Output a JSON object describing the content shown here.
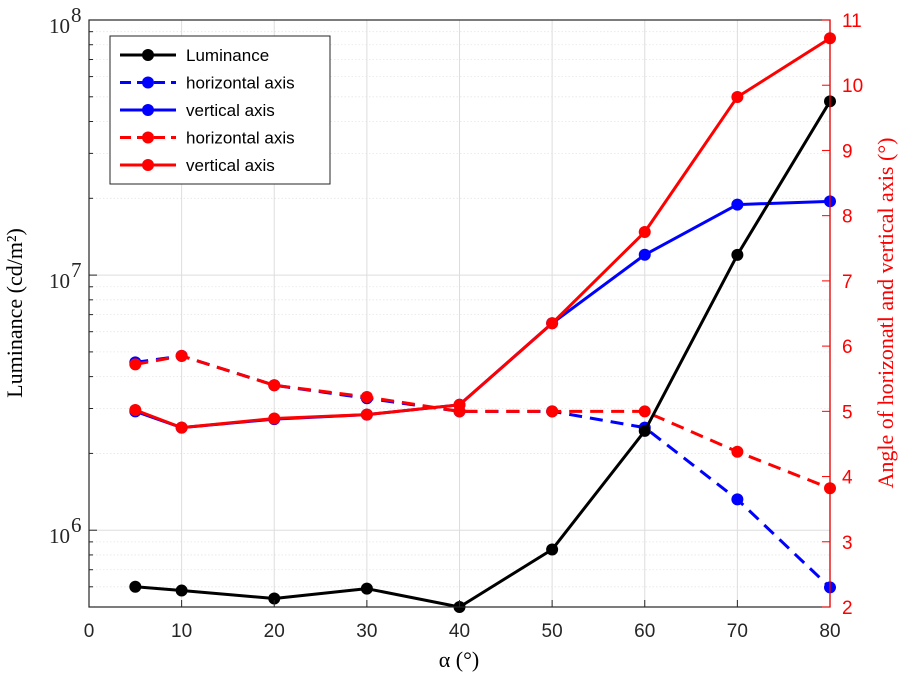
{
  "chart_data": {
    "type": "line",
    "x": [
      5,
      10,
      20,
      30,
      40,
      50,
      60,
      70,
      80
    ],
    "xlabel": "α (°)",
    "xlim": [
      0,
      80
    ],
    "xticks": [
      "0",
      "10",
      "20",
      "30",
      "40",
      "50",
      "60",
      "70",
      "80"
    ],
    "y_left": {
      "label": "Luminance (cd/m²)",
      "scale": "log",
      "lim": [
        500000,
        100000000
      ],
      "ticks": [
        {
          "value": 1000000,
          "base": "10",
          "exp": "6"
        },
        {
          "value": 10000000,
          "base": "10",
          "exp": "7"
        },
        {
          "value": 100000000,
          "base": "10",
          "exp": "8"
        }
      ],
      "color": "#000000"
    },
    "y_right": {
      "label": "Angle of horizonatl and vertical axis (°)",
      "scale": "linear",
      "lim": [
        2,
        11
      ],
      "ticks": [
        "2",
        "3",
        "4",
        "5",
        "6",
        "7",
        "8",
        "9",
        "10",
        "11"
      ],
      "color": "#ff0000"
    },
    "grid": true,
    "legend_position": "top-left",
    "series": [
      {
        "name": "Luminance",
        "axis": "left",
        "color": "#000000",
        "dash": "solid",
        "values": [
          600000,
          580000,
          540000,
          590000,
          500000,
          840000,
          2450000,
          12000000,
          48000000
        ]
      },
      {
        "name": "horizontal axis",
        "axis": "right",
        "color": "#0000ff",
        "dash": "dashed",
        "values": [
          5.75,
          5.85,
          5.4,
          5.2,
          5.0,
          5.0,
          4.75,
          3.65,
          2.3
        ]
      },
      {
        "name": "vertical axis",
        "axis": "right",
        "color": "#0000ff",
        "dash": "solid",
        "values": [
          5.0,
          4.75,
          4.88,
          4.95,
          5.1,
          6.35,
          7.4,
          8.17,
          8.22
        ]
      },
      {
        "name": "horizontal axis",
        "axis": "right",
        "color": "#ff0000",
        "dash": "dashed",
        "values": [
          5.72,
          5.85,
          5.4,
          5.22,
          5.0,
          5.0,
          5.0,
          4.38,
          3.82
        ]
      },
      {
        "name": "vertical axis",
        "axis": "right",
        "color": "#ff0000",
        "dash": "solid",
        "values": [
          5.02,
          4.75,
          4.89,
          4.95,
          5.1,
          6.35,
          7.75,
          9.82,
          10.72
        ]
      }
    ]
  }
}
